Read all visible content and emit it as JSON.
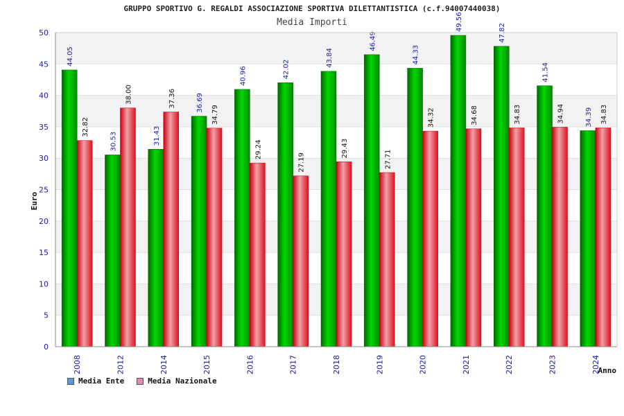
{
  "chart_data": {
    "type": "bar",
    "title": "GRUPPO SPORTIVO G. REGALDI ASSOCIAZIONE SPORTIVA DILETTANTISTICA (c.f.94007440038)",
    "subtitle": "Media Importi",
    "xlabel": "Anno",
    "ylabel": "Euro",
    "ylim": [
      0,
      50
    ],
    "yticks": [
      0,
      5,
      10,
      15,
      20,
      25,
      30,
      35,
      40,
      45,
      50
    ],
    "grid": true,
    "legend_position": "bottom-left",
    "categories": [
      "2008",
      "2012",
      "2014",
      "2015",
      "2016",
      "2017",
      "2018",
      "2019",
      "2020",
      "2021",
      "2022",
      "2023",
      "2024"
    ],
    "series": [
      {
        "name": "Media Ente",
        "color": "#00c000",
        "legend_color": "#5b9bd5",
        "values": [
          44.05,
          30.53,
          31.43,
          36.69,
          40.96,
          42.02,
          43.84,
          46.49,
          44.33,
          49.56,
          47.82,
          41.54,
          34.39
        ],
        "labels": [
          "44.05",
          "30.53",
          "31.43",
          "36.69",
          "40.96",
          "42.02",
          "43.84",
          "46.49",
          "44.33",
          "49.56",
          "47.82",
          "41.54",
          "34.39"
        ]
      },
      {
        "name": "Media Nazionale",
        "color": "#e8283a",
        "legend_color": "#d98cb3",
        "values": [
          32.82,
          38.0,
          37.36,
          34.79,
          29.24,
          27.19,
          29.43,
          27.71,
          34.32,
          34.68,
          34.83,
          34.94,
          34.83
        ],
        "labels": [
          "32.82",
          "38.00",
          "37.36",
          "34.79",
          "29.24",
          "27.19",
          "29.43",
          "27.71",
          "34.32",
          "34.68",
          "34.83",
          "34.94",
          "34.83"
        ]
      }
    ]
  }
}
